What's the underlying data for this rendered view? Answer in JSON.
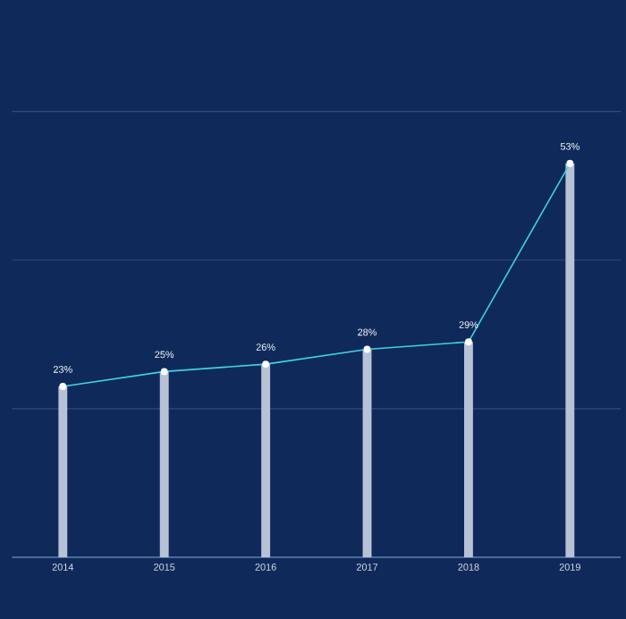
{
  "chart_data": {
    "type": "line",
    "categories": [
      "2014",
      "2015",
      "2016",
      "2017",
      "2018",
      "2019"
    ],
    "series": [
      {
        "type": "bar",
        "color": "#b8c2d6",
        "values": [
          23,
          25,
          26,
          28,
          29,
          53
        ]
      },
      {
        "color": "#3ed3e3",
        "values": [
          23,
          25,
          26,
          28,
          29,
          53
        ],
        "value_labels": [
          "23%",
          "25%",
          "26%",
          "28%",
          "29%",
          "53%"
        ],
        "marker": "circle"
      }
    ],
    "ylim": [
      0,
      60
    ],
    "yticks": [
      {
        "value": 0,
        "label": null
      },
      {
        "value": 20,
        "label": null
      },
      {
        "value": 40,
        "label": null
      },
      {
        "value": 60,
        "label": null
      }
    ],
    "tick_labels": "x",
    "grid": "y"
  }
}
